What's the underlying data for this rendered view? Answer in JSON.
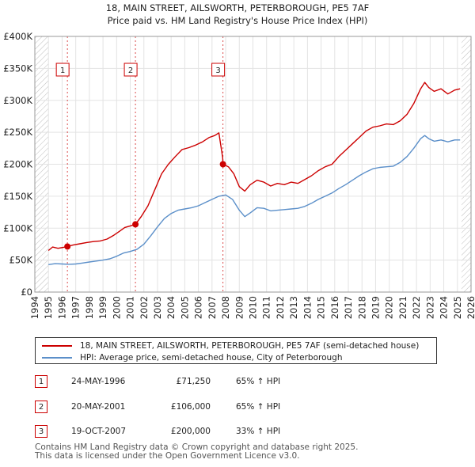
{
  "chart_data": {
    "type": "line",
    "title": "18, MAIN STREET, AILSWORTH, PETERBOROUGH, PE5 7AF",
    "subtitle": "Price paid vs. HM Land Registry's House Price Index (HPI)",
    "xlim": [
      1994,
      2026
    ],
    "ylim": [
      0,
      400000
    ],
    "x_ticks": [
      1994,
      1995,
      1996,
      1997,
      1998,
      1999,
      2000,
      2001,
      2002,
      2003,
      2004,
      2005,
      2006,
      2007,
      2008,
      2009,
      2010,
      2011,
      2012,
      2013,
      2014,
      2015,
      2016,
      2017,
      2018,
      2019,
      2020,
      2021,
      2022,
      2023,
      2024,
      2025,
      2026
    ],
    "y_ticks": [
      {
        "value": 0,
        "label": "£0"
      },
      {
        "value": 50000,
        "label": "£50K"
      },
      {
        "value": 100000,
        "label": "£100K"
      },
      {
        "value": 150000,
        "label": "£150K"
      },
      {
        "value": 200000,
        "label": "£200K"
      },
      {
        "value": 250000,
        "label": "£250K"
      },
      {
        "value": 300000,
        "label": "£300K"
      },
      {
        "value": 350000,
        "label": "£350K"
      },
      {
        "value": 400000,
        "label": "£400K"
      }
    ],
    "data_start": 1995.0,
    "data_end": 2025.3,
    "colors": {
      "property": "#cc0000",
      "hpi": "#5b8fc9",
      "hatch": "#bbbbbb",
      "vline": "#cc0000"
    },
    "series": [
      {
        "name": "18, MAIN STREET, AILSWORTH, PETERBOROUGH, PE5 7AF (semi-detached house)",
        "color": "#cc0000",
        "points": [
          [
            1995.0,
            65000
          ],
          [
            1995.3,
            70500
          ],
          [
            1995.7,
            68500
          ],
          [
            1996.1,
            70000
          ],
          [
            1996.39,
            71250
          ],
          [
            1996.8,
            73500
          ],
          [
            1997.3,
            75500
          ],
          [
            1997.8,
            77500
          ],
          [
            1998.3,
            79000
          ],
          [
            1998.8,
            80000
          ],
          [
            1999.3,
            83000
          ],
          [
            1999.8,
            89000
          ],
          [
            2000.2,
            95000
          ],
          [
            2000.6,
            101000
          ],
          [
            2001.0,
            103500
          ],
          [
            2001.38,
            106000
          ],
          [
            2001.8,
            118000
          ],
          [
            2002.3,
            135000
          ],
          [
            2002.8,
            160000
          ],
          [
            2003.3,
            185000
          ],
          [
            2003.8,
            200000
          ],
          [
            2004.3,
            212000
          ],
          [
            2004.8,
            223000
          ],
          [
            2005.3,
            226000
          ],
          [
            2005.8,
            230000
          ],
          [
            2006.3,
            235000
          ],
          [
            2006.8,
            242000
          ],
          [
            2007.2,
            245000
          ],
          [
            2007.5,
            249000
          ],
          [
            2007.78,
            210000
          ],
          [
            2007.8,
            200000
          ],
          [
            2008.2,
            196000
          ],
          [
            2008.6,
            185000
          ],
          [
            2009.0,
            165000
          ],
          [
            2009.4,
            158000
          ],
          [
            2009.8,
            168000
          ],
          [
            2010.3,
            175000
          ],
          [
            2010.8,
            172000
          ],
          [
            2011.3,
            166000
          ],
          [
            2011.8,
            170000
          ],
          [
            2012.3,
            168000
          ],
          [
            2012.8,
            172000
          ],
          [
            2013.3,
            170000
          ],
          [
            2013.8,
            176000
          ],
          [
            2014.3,
            182000
          ],
          [
            2014.8,
            190000
          ],
          [
            2015.3,
            196000
          ],
          [
            2015.8,
            200000
          ],
          [
            2016.3,
            212000
          ],
          [
            2016.8,
            222000
          ],
          [
            2017.3,
            232000
          ],
          [
            2017.8,
            242000
          ],
          [
            2018.3,
            252000
          ],
          [
            2018.8,
            258000
          ],
          [
            2019.3,
            260000
          ],
          [
            2019.8,
            263000
          ],
          [
            2020.3,
            262000
          ],
          [
            2020.8,
            268000
          ],
          [
            2021.3,
            278000
          ],
          [
            2021.8,
            295000
          ],
          [
            2022.3,
            318000
          ],
          [
            2022.6,
            328000
          ],
          [
            2022.9,
            320000
          ],
          [
            2023.3,
            314000
          ],
          [
            2023.8,
            318000
          ],
          [
            2024.3,
            310000
          ],
          [
            2024.8,
            316000
          ],
          [
            2025.2,
            318000
          ]
        ]
      },
      {
        "name": "HPI: Average price, semi-detached house, City of Peterborough",
        "color": "#5b8fc9",
        "points": [
          [
            1995.0,
            43000
          ],
          [
            1995.5,
            44500
          ],
          [
            1996.0,
            44000
          ],
          [
            1996.5,
            43500
          ],
          [
            1997.0,
            44000
          ],
          [
            1997.5,
            45500
          ],
          [
            1998.0,
            47000
          ],
          [
            1998.5,
            48500
          ],
          [
            1999.0,
            50000
          ],
          [
            1999.5,
            52000
          ],
          [
            2000.0,
            56000
          ],
          [
            2000.5,
            61000
          ],
          [
            2001.0,
            63500
          ],
          [
            2001.5,
            67000
          ],
          [
            2002.0,
            75000
          ],
          [
            2002.5,
            88000
          ],
          [
            2003.0,
            102000
          ],
          [
            2003.5,
            115000
          ],
          [
            2004.0,
            123000
          ],
          [
            2004.5,
            128000
          ],
          [
            2005.0,
            130000
          ],
          [
            2005.5,
            132000
          ],
          [
            2006.0,
            135000
          ],
          [
            2006.5,
            140000
          ],
          [
            2007.0,
            145000
          ],
          [
            2007.5,
            150000
          ],
          [
            2008.0,
            152000
          ],
          [
            2008.5,
            145000
          ],
          [
            2009.0,
            128000
          ],
          [
            2009.4,
            118000
          ],
          [
            2009.8,
            124000
          ],
          [
            2010.3,
            132000
          ],
          [
            2010.8,
            131000
          ],
          [
            2011.3,
            127000
          ],
          [
            2011.8,
            128000
          ],
          [
            2012.3,
            129000
          ],
          [
            2012.8,
            130000
          ],
          [
            2013.3,
            131000
          ],
          [
            2013.8,
            134000
          ],
          [
            2014.3,
            139000
          ],
          [
            2014.8,
            145000
          ],
          [
            2015.3,
            150000
          ],
          [
            2015.8,
            155000
          ],
          [
            2016.3,
            162000
          ],
          [
            2016.8,
            168000
          ],
          [
            2017.3,
            175000
          ],
          [
            2017.8,
            182000
          ],
          [
            2018.3,
            188000
          ],
          [
            2018.8,
            193000
          ],
          [
            2019.3,
            195000
          ],
          [
            2019.8,
            196000
          ],
          [
            2020.3,
            197000
          ],
          [
            2020.8,
            203000
          ],
          [
            2021.3,
            212000
          ],
          [
            2021.8,
            225000
          ],
          [
            2022.3,
            240000
          ],
          [
            2022.6,
            245000
          ],
          [
            2022.9,
            240000
          ],
          [
            2023.3,
            236000
          ],
          [
            2023.8,
            238000
          ],
          [
            2024.3,
            235000
          ],
          [
            2024.8,
            238000
          ],
          [
            2025.2,
            238000
          ]
        ]
      }
    ],
    "sales": [
      {
        "label": "1",
        "x": 1996.39,
        "price": 71250
      },
      {
        "label": "2",
        "x": 2001.38,
        "price": 106000
      },
      {
        "label": "3",
        "x": 2007.8,
        "price": 200000
      }
    ]
  },
  "legend": {
    "property_label": "18, MAIN STREET, AILSWORTH, PETERBOROUGH, PE5 7AF (semi-detached house)",
    "hpi_label": "HPI: Average price, semi-detached house, City of Peterborough"
  },
  "sales_table": [
    {
      "num": "1",
      "date": "24-MAY-1996",
      "price": "£71,250",
      "hpi": "65% ↑ HPI"
    },
    {
      "num": "2",
      "date": "20-MAY-2001",
      "price": "£106,000",
      "hpi": "65% ↑ HPI"
    },
    {
      "num": "3",
      "date": "19-OCT-2007",
      "price": "£200,000",
      "hpi": "33% ↑ HPI"
    }
  ],
  "footer": {
    "line1": "Contains HM Land Registry data © Crown copyright and database right 2025.",
    "line2": "This data is licensed under the Open Government Licence v3.0."
  }
}
